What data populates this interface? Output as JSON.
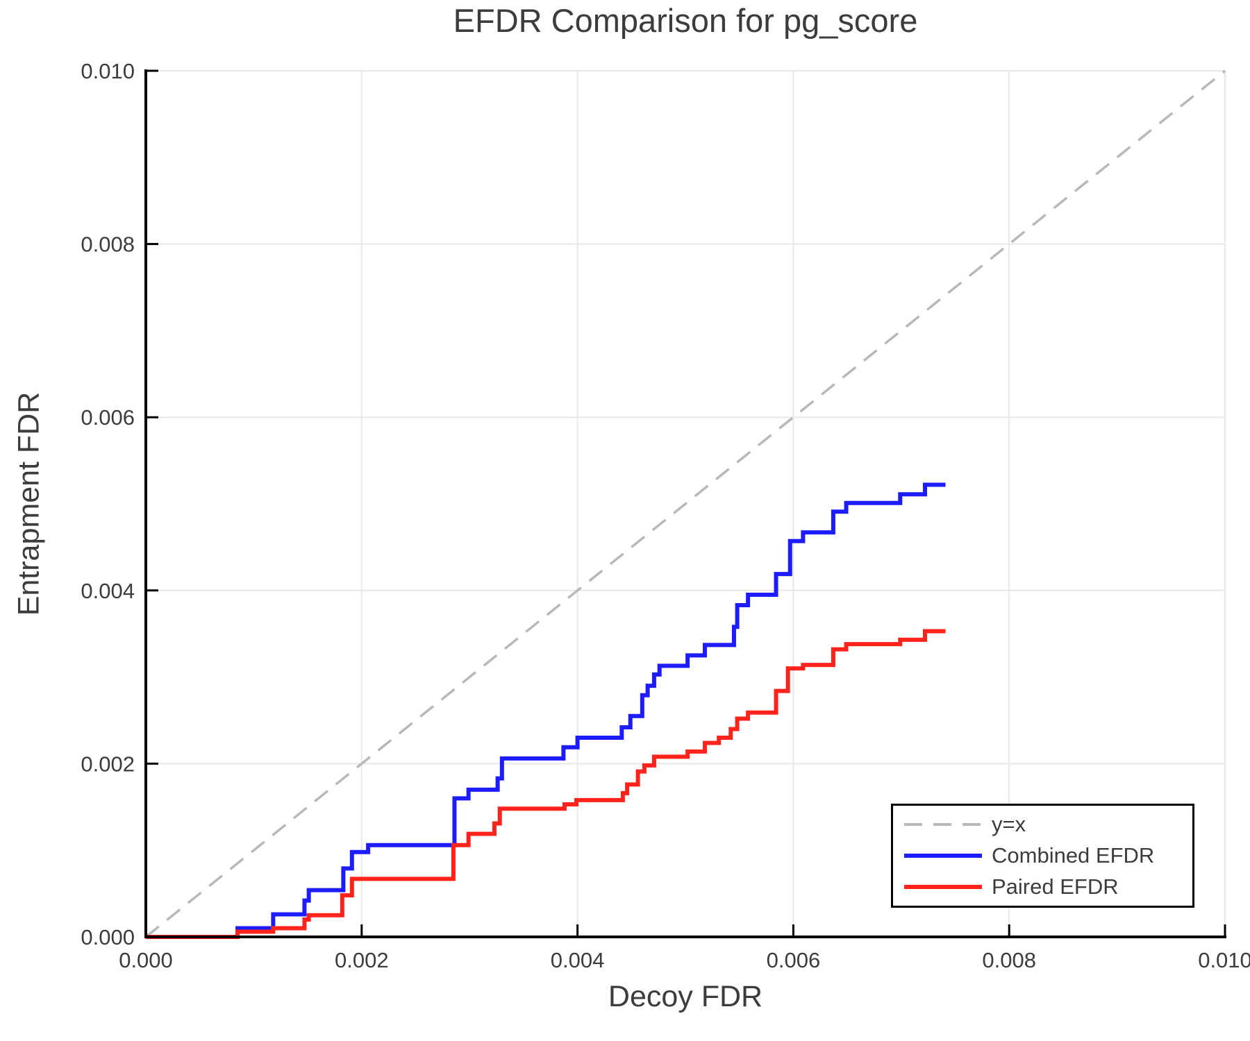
{
  "chart_data": {
    "type": "line",
    "title": "EFDR Comparison for pg_score",
    "xlabel": "Decoy FDR",
    "ylabel": "Entrapment FDR",
    "xlim": [
      0.0,
      0.01
    ],
    "ylim": [
      0.0,
      0.01
    ],
    "grid": true,
    "x_ticks": {
      "values": [
        0.0,
        0.002,
        0.004,
        0.006,
        0.008,
        0.01
      ],
      "labels": [
        "0.000",
        "0.002",
        "0.004",
        "0.006",
        "0.008",
        "0.010"
      ]
    },
    "y_ticks": {
      "values": [
        0.0,
        0.002,
        0.004,
        0.006,
        0.008,
        0.01
      ],
      "labels": [
        "0.000",
        "0.002",
        "0.004",
        "0.006",
        "0.008",
        "0.010"
      ]
    },
    "legend_position": "lower right",
    "series": [
      {
        "name": "y=x",
        "kind": "line",
        "dashed": true,
        "color": "#b8b8b8",
        "width": 3.5,
        "points": [
          [
            0.0,
            0.0
          ],
          [
            0.01,
            0.01
          ]
        ]
      },
      {
        "name": "Combined EFDR",
        "kind": "step",
        "dashed": false,
        "color": "#1c1cff",
        "width": 6,
        "start": [
          0.0,
          0.0
        ],
        "end_x": 0.00741,
        "steps": [
          [
            0.00085,
            0.0001
          ],
          [
            0.00118,
            0.00026
          ],
          [
            0.00147,
            0.00042
          ],
          [
            0.00151,
            0.00054
          ],
          [
            0.00183,
            0.00079
          ],
          [
            0.00191,
            0.00098
          ],
          [
            0.00206,
            0.00106
          ],
          [
            0.00286,
            0.0016
          ],
          [
            0.00299,
            0.0017
          ],
          [
            0.00326,
            0.00183
          ],
          [
            0.0033,
            0.00206
          ],
          [
            0.00387,
            0.00219
          ],
          [
            0.004,
            0.0023
          ],
          [
            0.00441,
            0.00242
          ],
          [
            0.00449,
            0.00255
          ],
          [
            0.0046,
            0.00279
          ],
          [
            0.00465,
            0.0029
          ],
          [
            0.00471,
            0.00303
          ],
          [
            0.00476,
            0.00313
          ],
          [
            0.00502,
            0.00325
          ],
          [
            0.00518,
            0.00337
          ],
          [
            0.00545,
            0.00358
          ],
          [
            0.00548,
            0.00383
          ],
          [
            0.00558,
            0.00395
          ],
          [
            0.00584,
            0.00419
          ],
          [
            0.00597,
            0.00457
          ],
          [
            0.00609,
            0.00467
          ],
          [
            0.00637,
            0.00491
          ],
          [
            0.00649,
            0.00501
          ],
          [
            0.00699,
            0.00511
          ],
          [
            0.00722,
            0.00522
          ]
        ]
      },
      {
        "name": "Paired EFDR",
        "kind": "step",
        "dashed": false,
        "color": "#ff231b",
        "width": 6,
        "start": [
          0.0,
          0.0
        ],
        "end_x": 0.00741,
        "steps": [
          [
            0.00085,
            6e-05
          ],
          [
            0.00118,
            0.0001
          ],
          [
            0.00147,
            0.0002
          ],
          [
            0.00151,
            0.00025
          ],
          [
            0.00182,
            0.00048
          ],
          [
            0.00191,
            0.00067
          ],
          [
            0.00285,
            0.00106
          ],
          [
            0.00299,
            0.00119
          ],
          [
            0.00323,
            0.00131
          ],
          [
            0.00328,
            0.00148
          ],
          [
            0.00388,
            0.00153
          ],
          [
            0.00399,
            0.00158
          ],
          [
            0.00442,
            0.00166
          ],
          [
            0.00446,
            0.00176
          ],
          [
            0.00456,
            0.00191
          ],
          [
            0.00462,
            0.00198
          ],
          [
            0.00471,
            0.00208
          ],
          [
            0.00502,
            0.00214
          ],
          [
            0.00518,
            0.00224
          ],
          [
            0.00531,
            0.0023
          ],
          [
            0.00542,
            0.0024
          ],
          [
            0.00548,
            0.00252
          ],
          [
            0.00558,
            0.00259
          ],
          [
            0.00584,
            0.00284
          ],
          [
            0.00595,
            0.0031
          ],
          [
            0.00609,
            0.00314
          ],
          [
            0.00637,
            0.00332
          ],
          [
            0.00649,
            0.00338
          ],
          [
            0.00699,
            0.00343
          ],
          [
            0.00722,
            0.00353
          ]
        ]
      }
    ],
    "legend_entries": [
      "y=x",
      "Combined EFDR",
      "Paired EFDR"
    ],
    "colors": {
      "grid": "#e8e8e8",
      "spine": "#000000",
      "text": "#3c3c3c",
      "diagonal": "#b8b8b8",
      "combined": "#1c1cff",
      "paired": "#ff231b"
    }
  }
}
